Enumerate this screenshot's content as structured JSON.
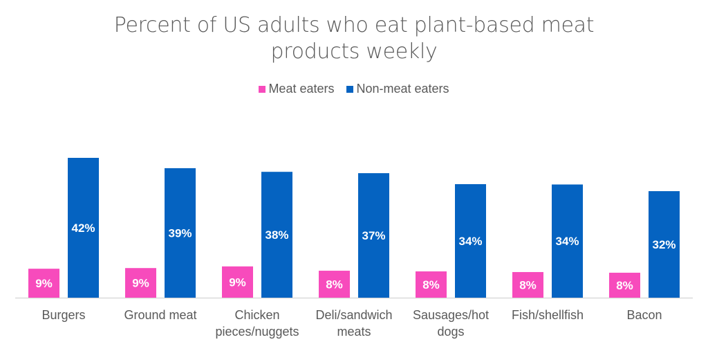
{
  "chart_data": {
    "type": "bar",
    "title": "Percent of US adults who eat plant-based meat products weekly",
    "title_lines": [
      "Percent of US adults who eat plant-based meat",
      "products weekly"
    ],
    "categories": [
      [
        "Burgers"
      ],
      [
        "Ground meat"
      ],
      [
        "Chicken",
        "pieces/nuggets"
      ],
      [
        "Deli/sandwich",
        "meats"
      ],
      [
        "Sausages/hot",
        "dogs"
      ],
      [
        "Fish/shellfish"
      ],
      [
        "Bacon"
      ]
    ],
    "series": [
      {
        "name": "Meat eaters",
        "color": "#F74BBC",
        "values": [
          8.7,
          8.9,
          9.4,
          8.1,
          7.9,
          7.7,
          7.5
        ],
        "labels": [
          "9%",
          "9%",
          "9%",
          "8%",
          "8%",
          "8%",
          "8%"
        ]
      },
      {
        "name": "Non-meat eaters",
        "color": "#0563C1",
        "values": [
          42.0,
          38.9,
          37.8,
          37.4,
          34.1,
          34.0,
          32.0
        ],
        "labels": [
          "42%",
          "39%",
          "38%",
          "37%",
          "34%",
          "34%",
          "32%"
        ]
      }
    ],
    "xlabel": "",
    "ylabel": "",
    "ylim": [
      0,
      42
    ],
    "grid": false,
    "legend_position": "top-center",
    "axis_color": "#D9D9D9"
  }
}
